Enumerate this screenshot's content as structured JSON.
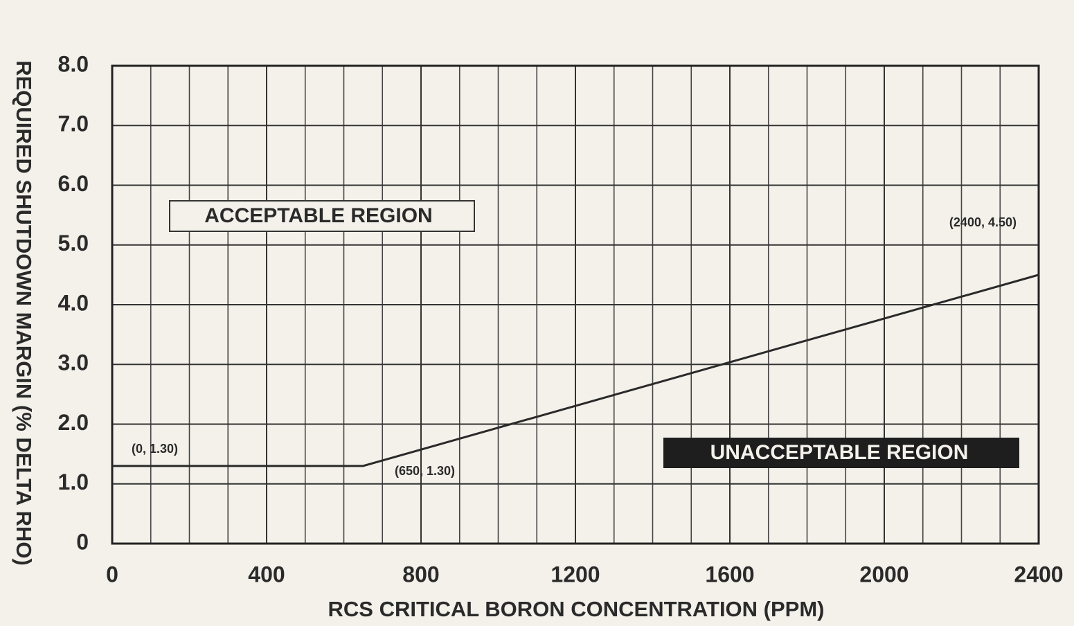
{
  "chart_data": {
    "type": "line",
    "xlabel": "RCS CRITICAL BORON CONCENTRATION (PPM)",
    "ylabel": "REQUIRED SHUTDOWN MARGIN (% DELTA RHO)",
    "x": [
      0,
      650,
      2400
    ],
    "series": [
      {
        "color": "#2a2a2a",
        "values": [
          1.3,
          1.3,
          4.5
        ]
      }
    ],
    "xlim": [
      0,
      2400
    ],
    "xticks": [
      0,
      400,
      800,
      1200,
      1600,
      2000,
      2400
    ],
    "ylim": [
      0,
      8
    ],
    "yticks": [
      0,
      {
        "value": 1,
        "label": "1.0"
      },
      {
        "value": 2,
        "label": "2.0"
      },
      {
        "value": 3,
        "label": "3.0"
      },
      {
        "value": 4,
        "label": "4.0"
      },
      {
        "value": 5,
        "label": "5.0"
      },
      {
        "value": 6,
        "label": "6.0"
      },
      {
        "value": 7,
        "label": "7.0"
      },
      {
        "value": 8,
        "label": "8.0"
      }
    ],
    "grid": true,
    "annotations": [
      "(0, 1.30)",
      "(650, 1.30)",
      "(2400, 4.50)",
      "ACCEPTABLE REGION",
      "UNACCEPTABLE REGION"
    ]
  }
}
